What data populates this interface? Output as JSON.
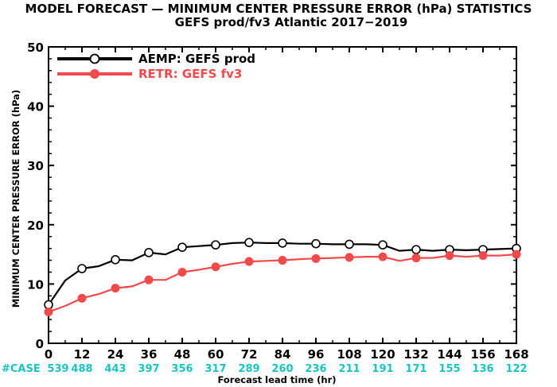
{
  "chart_data": {
    "type": "line",
    "title": "MODEL FORECAST — MINIMUM CENTER PRESSURE ERROR (hPa) STATISTICS",
    "subtitle": "GEFS prod/fv3 Atlantic 2017−2019",
    "xlabel": "Forecast lead time (hr)",
    "ylabel": "MINIMUM CENTER PRESSURE ERROR (hPa)",
    "xlim": [
      0,
      168
    ],
    "ylim": [
      0,
      50
    ],
    "x_ticks": [
      "0",
      "12",
      "24",
      "36",
      "48",
      "60",
      "72",
      "84",
      "96",
      "108",
      "120",
      "132",
      "144",
      "156",
      "168"
    ],
    "y_ticks": [
      "0",
      "10",
      "20",
      "30",
      "40",
      "50"
    ],
    "x": [
      0,
      6,
      12,
      18,
      24,
      30,
      36,
      42,
      48,
      54,
      60,
      66,
      72,
      78,
      84,
      90,
      96,
      102,
      108,
      114,
      120,
      126,
      132,
      138,
      144,
      150,
      156,
      162,
      168
    ],
    "series": [
      {
        "name": "AEMP: GEFS prod",
        "color": "#000000",
        "values": [
          6.5,
          10.6,
          12.6,
          13.0,
          14.1,
          14.0,
          15.3,
          15.0,
          16.2,
          16.4,
          16.6,
          16.9,
          17.0,
          16.9,
          16.9,
          16.8,
          16.8,
          16.7,
          16.7,
          16.7,
          16.6,
          15.6,
          15.8,
          15.6,
          15.8,
          15.7,
          15.8,
          15.9,
          16.0
        ]
      },
      {
        "name": "RETR: GEFS fv3",
        "color": "#f24a4a",
        "values": [
          5.3,
          6.3,
          7.6,
          8.3,
          9.3,
          9.6,
          10.7,
          10.7,
          12.0,
          12.4,
          12.9,
          13.4,
          13.8,
          13.9,
          14.0,
          14.2,
          14.3,
          14.4,
          14.5,
          14.6,
          14.6,
          13.9,
          14.4,
          14.4,
          14.8,
          14.6,
          14.8,
          14.8,
          15.0
        ]
      }
    ],
    "markers_every": 2,
    "legend_position": "top-left",
    "grid": false,
    "case_label": "#CASE",
    "cases": [
      "539",
      "488",
      "443",
      "397",
      "356",
      "317",
      "289",
      "260",
      "236",
      "211",
      "191",
      "171",
      "155",
      "136",
      "122"
    ],
    "case_color": "#19c3c3"
  }
}
